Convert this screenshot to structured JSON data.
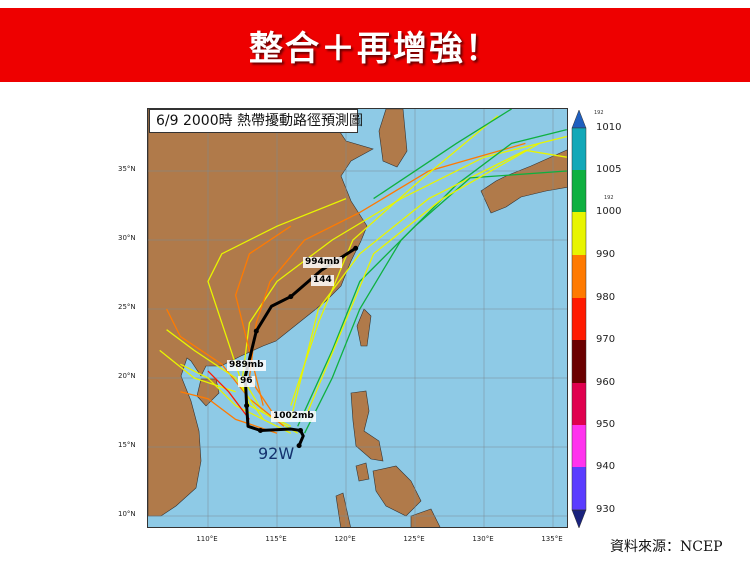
{
  "banner": {
    "text": "整合＋再增強！",
    "color": "#ee0000"
  },
  "map": {
    "title": "6/9 2000時  熱帶擾動路徑預測圖",
    "lat_ticks": [
      "35°N",
      "30°N",
      "25°N",
      "20°N",
      "15°N",
      "10°N"
    ],
    "lon_ticks": [
      "110°E",
      "115°E",
      "120°E",
      "125°E",
      "130°E",
      "135°E"
    ],
    "colors": {
      "ocean": "#8ecae6",
      "land": "#b07a4a",
      "grid": "#7a8a94",
      "mean_track": "#000000"
    },
    "storm_id": "92W",
    "labels": {
      "p1": "994mb",
      "h1": "144",
      "p2": "989mb",
      "h2": "96",
      "p3": "1002mb"
    },
    "mean_track": [
      [
        116.6,
        15.1
      ],
      [
        116.9,
        15.8
      ],
      [
        116.7,
        16.2
      ],
      [
        116.0,
        16.3
      ],
      [
        113.8,
        16.2
      ],
      [
        112.9,
        16.5
      ],
      [
        112.8,
        18.0
      ],
      [
        112.7,
        20.1
      ],
      [
        113.5,
        23.4
      ],
      [
        114.6,
        25.2
      ],
      [
        116.0,
        25.9
      ],
      [
        118.2,
        27.8
      ],
      [
        120.7,
        29.4
      ]
    ],
    "ensemble_tracks": [
      {
        "color": "#e8f500",
        "pts": [
          [
            116.5,
            16
          ],
          [
            114,
            17.5
          ],
          [
            112.5,
            20
          ],
          [
            113,
            24
          ],
          [
            115,
            27
          ],
          [
            119,
            30
          ],
          [
            124,
            33
          ],
          [
            130,
            36
          ],
          [
            136,
            37.5
          ]
        ]
      },
      {
        "color": "#e8f500",
        "pts": [
          [
            116,
            16.5
          ],
          [
            113,
            18
          ],
          [
            112,
            21
          ],
          [
            111,
            24
          ],
          [
            110,
            27
          ],
          [
            111,
            29
          ],
          [
            115,
            31
          ],
          [
            120,
            33
          ]
        ]
      },
      {
        "color": "#ff7a00",
        "pts": [
          [
            115.5,
            16.5
          ],
          [
            113,
            18.5
          ],
          [
            111,
            21
          ],
          [
            108,
            23
          ],
          [
            107,
            25
          ]
        ]
      },
      {
        "color": "#e8f500",
        "pts": [
          [
            116,
            16
          ],
          [
            112,
            18
          ],
          [
            110,
            20
          ],
          [
            108,
            21
          ]
        ]
      },
      {
        "color": "#ff7a00",
        "pts": [
          [
            115,
            17
          ],
          [
            113,
            20
          ],
          [
            113.5,
            24
          ],
          [
            114.5,
            27
          ],
          [
            117,
            30
          ],
          [
            121,
            32
          ],
          [
            126,
            35
          ],
          [
            133,
            37
          ]
        ]
      },
      {
        "color": "#0fb040",
        "pts": [
          [
            117,
            16
          ],
          [
            119,
            20
          ],
          [
            121,
            25
          ],
          [
            124,
            30
          ],
          [
            128,
            34
          ],
          [
            132,
            37
          ],
          [
            136,
            38
          ]
        ]
      },
      {
        "color": "#e8f500",
        "pts": [
          [
            116,
            17
          ],
          [
            117,
            21
          ],
          [
            118,
            25
          ],
          [
            121,
            29
          ],
          [
            126,
            33
          ],
          [
            133,
            36.5
          ],
          [
            136,
            36
          ]
        ]
      },
      {
        "color": "#0fb040",
        "pts": [
          [
            116.5,
            16.5
          ],
          [
            119,
            22
          ],
          [
            121,
            27
          ],
          [
            125,
            31
          ],
          [
            129,
            34.5
          ],
          [
            136,
            35
          ]
        ]
      },
      {
        "color": "#ff7a00",
        "pts": [
          [
            115,
            16
          ],
          [
            112,
            17
          ],
          [
            110,
            18.5
          ],
          [
            108,
            19
          ]
        ]
      },
      {
        "color": "#e8f500",
        "pts": [
          [
            114,
            17
          ],
          [
            112,
            20
          ],
          [
            109,
            22
          ],
          [
            107,
            23.5
          ]
        ]
      },
      {
        "color": "#e8f500",
        "pts": [
          [
            116,
            18
          ],
          [
            118,
            24
          ],
          [
            120.5,
            30
          ],
          [
            125,
            34
          ],
          [
            131,
            39
          ]
        ]
      },
      {
        "color": "#0fb040",
        "pts": [
          [
            122,
            33
          ],
          [
            128,
            37
          ],
          [
            132,
            39.5
          ]
        ]
      },
      {
        "color": "#ff7a00",
        "pts": [
          [
            114,
            18
          ],
          [
            113,
            22
          ],
          [
            112,
            26
          ],
          [
            113,
            29
          ],
          [
            116,
            31
          ]
        ]
      },
      {
        "color": "#e8f500",
        "pts": [
          [
            112,
            19
          ],
          [
            109,
            20
          ],
          [
            106.5,
            22
          ]
        ]
      },
      {
        "color": "#e8f500",
        "pts": [
          [
            117,
            17
          ],
          [
            119.5,
            23
          ],
          [
            122,
            29
          ],
          [
            127,
            33
          ],
          [
            134,
            37
          ]
        ]
      },
      {
        "color": "#ff1a00",
        "pts": [
          [
            113,
            17
          ],
          [
            111.5,
            19
          ],
          [
            110,
            20.5
          ]
        ]
      }
    ]
  },
  "colorbar": {
    "ticks": [
      "1010",
      "1005",
      "1000",
      "990",
      "980",
      "970",
      "960",
      "950",
      "940",
      "930"
    ],
    "small_labels": [
      "192",
      "192"
    ],
    "bands": [
      "#12a8b8",
      "#0fb040",
      "#e8f500",
      "#ff7a00",
      "#ff1a00",
      "#6b0000",
      "#e0004e",
      "#ff33ee",
      "#5a3cff"
    ],
    "top_arrow": "#1f5fbf",
    "bottom_arrow": "#1a237e"
  },
  "source": "資料來源：NCEP"
}
